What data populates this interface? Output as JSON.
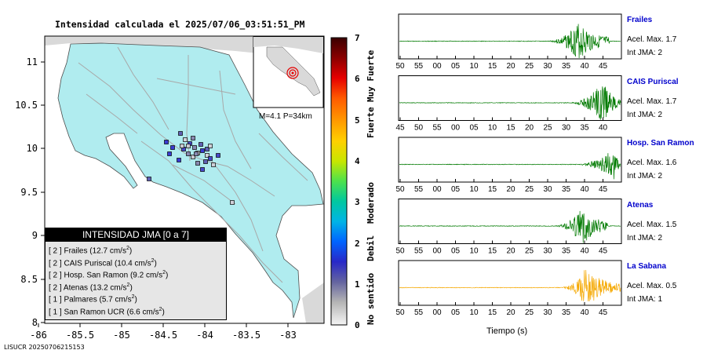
{
  "map": {
    "title": "Intensidad calculada el 2025/07/06_03:51:51_PM",
    "x_ticks": [
      "-86",
      "-85.5",
      "-85",
      "-84.5",
      "-84",
      "-83.5",
      "-83"
    ],
    "y_ticks": [
      "11",
      "10.5",
      "10",
      "9.5",
      "9",
      "8.5",
      "8"
    ],
    "land_color": "#b0ecef",
    "road_color": "#a8a8a8",
    "inset_label": "M=4.1 P=34km",
    "footer": "LISUCR 20250706215153"
  },
  "legend": {
    "title": "INTENSIDAD JMA [0 a 7]",
    "items": [
      {
        "level": "[ 2 ]",
        "station": "Frailes",
        "value": "(12.7 cm/s",
        "exp": "2",
        "close": ")"
      },
      {
        "level": "[ 2 ]",
        "station": "CAIS Puriscal",
        "value": "(10.4 cm/s",
        "exp": "2",
        "close": ")"
      },
      {
        "level": "[ 2 ]",
        "station": "Hosp. San Ramon",
        "value": "(9.2 cm/s",
        "exp": "2",
        "close": ")"
      },
      {
        "level": "[ 2 ]",
        "station": "Atenas",
        "value": "(13.2 cm/s",
        "exp": "2",
        "close": ")"
      },
      {
        "level": "[ 1 ]",
        "station": "Palmares",
        "value": "(5.7 cm/s",
        "exp": "2",
        "close": ")"
      },
      {
        "level": "[ 1 ]",
        "station": "San Ramon UCR",
        "value": "(6.6 cm/s",
        "exp": "2",
        "close": ")"
      }
    ]
  },
  "colorbar": {
    "levels": [
      "7",
      "6",
      "5",
      "4",
      "3",
      "2",
      "1",
      "0"
    ],
    "categories": [
      "Muy Fuerte",
      "Fuerte",
      "Moderado",
      "Debil",
      "No sentido"
    ]
  },
  "traces": [
    {
      "name": "Frailes",
      "accel": "Acel. Max. 1.7",
      "int": "Int JMA: 2",
      "color": "#007a00",
      "ticks": [
        "50",
        "55",
        "00",
        "05",
        "10",
        "15",
        "20",
        "25",
        "30",
        "35",
        "40",
        "45"
      ]
    },
    {
      "name": "CAIS Puriscal",
      "accel": "Acel. Max. 1.7",
      "int": "Int JMA: 2",
      "color": "#007a00",
      "ticks": [
        "45",
        "50",
        "55",
        "00",
        "05",
        "10",
        "15",
        "20",
        "25",
        "30",
        "35",
        "40"
      ]
    },
    {
      "name": "Hosp. San Ramon",
      "accel": "Acel. Max. 1.6",
      "int": "Int JMA: 2",
      "color": "#007a00",
      "ticks": [
        "50",
        "55",
        "00",
        "05",
        "10",
        "15",
        "20",
        "25",
        "30",
        "35",
        "40",
        "45"
      ]
    },
    {
      "name": "Atenas",
      "accel": "Acel. Max. 1.5",
      "int": "Int JMA: 2",
      "color": "#007a00",
      "ticks": [
        "50",
        "55",
        "00",
        "05",
        "10",
        "15",
        "20",
        "25",
        "30",
        "35",
        "40",
        "45"
      ]
    },
    {
      "name": "La Sabana",
      "accel": "Acel. Max. 0.5",
      "int": "Int JMA: 1",
      "color": "#f5a800",
      "ticks": [
        "50",
        "55",
        "00",
        "05",
        "10",
        "15",
        "20",
        "25",
        "30",
        "35",
        "40",
        "45"
      ]
    }
  ],
  "time_axis_label": "Tiempo (s)"
}
